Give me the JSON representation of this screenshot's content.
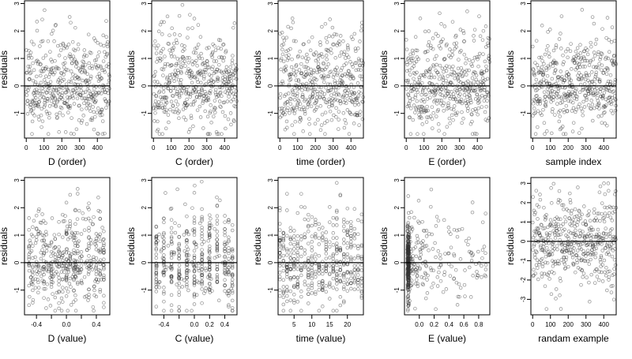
{
  "chart_data": [
    {
      "type": "scatter",
      "title": "",
      "xlabel": "D (order)",
      "ylabel": "residuals",
      "xlim": [
        -10,
        470
      ],
      "ylim": [
        -1.9,
        3.1
      ],
      "xticks": [
        0,
        100,
        200,
        300,
        400
      ],
      "xtick_labels": [
        "0",
        "100",
        "200",
        "300",
        "400"
      ],
      "yticks": [
        -1,
        0,
        1,
        2,
        3
      ],
      "ytick_labels": [
        "-1",
        "0",
        "1",
        "2",
        "3"
      ],
      "reference_line_y": 0,
      "pattern": "order",
      "n": 470,
      "seed": 11,
      "points_note": "",
      "x": [],
      "y": []
    },
    {
      "type": "scatter",
      "title": "",
      "xlabel": "C (order)",
      "ylabel": "residuals",
      "xlim": [
        -10,
        470
      ],
      "ylim": [
        -1.9,
        3.1
      ],
      "xticks": [
        0,
        100,
        200,
        300,
        400
      ],
      "xtick_labels": [
        "0",
        "100",
        "200",
        "300",
        "400"
      ],
      "yticks": [
        -1,
        0,
        1,
        2,
        3
      ],
      "ytick_labels": [
        "-1",
        "0",
        "1",
        "2",
        "3"
      ],
      "reference_line_y": 0,
      "pattern": "order",
      "n": 470,
      "seed": 23,
      "points_note": "",
      "x": [],
      "y": []
    },
    {
      "type": "scatter",
      "title": "",
      "xlabel": "time (order)",
      "ylabel": "residuals",
      "xlim": [
        -10,
        470
      ],
      "ylim": [
        -1.9,
        3.1
      ],
      "xticks": [
        0,
        100,
        200,
        300,
        400
      ],
      "xtick_labels": [
        "0",
        "100",
        "200",
        "300",
        "400"
      ],
      "yticks": [
        -1,
        0,
        1,
        2,
        3
      ],
      "ytick_labels": [
        "-1",
        "0",
        "1",
        "2",
        "3"
      ],
      "reference_line_y": 0,
      "pattern": "order",
      "n": 470,
      "seed": 37,
      "points_note": "",
      "x": [],
      "y": []
    },
    {
      "type": "scatter",
      "title": "",
      "xlabel": "E (order)",
      "ylabel": "residuals",
      "xlim": [
        -10,
        470
      ],
      "ylim": [
        -1.9,
        3.1
      ],
      "xticks": [
        0,
        100,
        200,
        300,
        400
      ],
      "xtick_labels": [
        "0",
        "100",
        "200",
        "300",
        "400"
      ],
      "yticks": [
        -1,
        0,
        1,
        2,
        3
      ],
      "ytick_labels": [
        "-1",
        "0",
        "1",
        "2",
        "3"
      ],
      "reference_line_y": 0,
      "pattern": "order",
      "n": 470,
      "seed": 41,
      "points_note": "",
      "x": [],
      "y": []
    },
    {
      "type": "scatter",
      "title": "",
      "xlabel": "sample index",
      "ylabel": "residuals",
      "xlim": [
        -10,
        470
      ],
      "ylim": [
        -1.9,
        3.1
      ],
      "xticks": [
        0,
        100,
        200,
        300,
        400
      ],
      "xtick_labels": [
        "0",
        "100",
        "200",
        "300",
        "400"
      ],
      "yticks": [
        -1,
        0,
        1,
        2,
        3
      ],
      "ytick_labels": [
        "-1",
        "0",
        "1",
        "2",
        "3"
      ],
      "reference_line_y": 0,
      "pattern": "order",
      "n": 470,
      "seed": 53,
      "points_note": "",
      "x": [],
      "y": []
    },
    {
      "type": "scatter",
      "title": "",
      "xlabel": "D (value)",
      "ylabel": "residuals",
      "xlim": [
        -0.56,
        0.58
      ],
      "ylim": [
        -1.9,
        3.1
      ],
      "xticks": [
        -0.4,
        -0.2,
        0.0,
        0.2,
        0.4
      ],
      "xtick_labels": [
        "-0.4",
        "",
        "0.0",
        "",
        "0.4"
      ],
      "yticks": [
        -1,
        0,
        1,
        2,
        3
      ],
      "ytick_labels": [
        "-1",
        "0",
        "1",
        "2",
        "3"
      ],
      "reference_line_y": 0,
      "pattern": "value_D",
      "n": 470,
      "seed": 61,
      "points_note": "",
      "x": [],
      "y": []
    },
    {
      "type": "scatter",
      "title": "",
      "xlabel": "C (value)",
      "ylabel": "residuals",
      "xlim": [
        -0.56,
        0.56
      ],
      "ylim": [
        -1.9,
        3.1
      ],
      "xticks": [
        -0.4,
        -0.2,
        0.0,
        0.2,
        0.4
      ],
      "xtick_labels": [
        "-0.4",
        "",
        "0.0",
        "0.2",
        "0.4"
      ],
      "yticks": [
        -1,
        0,
        1,
        2,
        3
      ],
      "ytick_labels": [
        "-1",
        "0",
        "1",
        "2",
        "3"
      ],
      "reference_line_y": 0,
      "pattern": "value_C",
      "n": 470,
      "seed": 73,
      "points_note": "",
      "x": [],
      "y": []
    },
    {
      "type": "scatter",
      "title": "",
      "xlabel": "time (value)",
      "ylabel": "residuals",
      "xlim": [
        0.5,
        24.5
      ],
      "ylim": [
        -1.9,
        3.1
      ],
      "xticks": [
        5,
        10,
        15,
        20
      ],
      "xtick_labels": [
        "5",
        "10",
        "15",
        "20"
      ],
      "yticks": [
        -1,
        0,
        1,
        2,
        3
      ],
      "ytick_labels": [
        "-1",
        "0",
        "1",
        "2",
        "3"
      ],
      "reference_line_y": 0,
      "pattern": "value_time",
      "n": 470,
      "seed": 83,
      "points_note": "",
      "x": [],
      "y": []
    },
    {
      "type": "scatter",
      "title": "",
      "xlabel": "E (value)",
      "ylabel": "residuals",
      "xlim": [
        -0.2,
        0.95
      ],
      "ylim": [
        -1.9,
        3.1
      ],
      "xticks": [
        0.0,
        0.2,
        0.4,
        0.6,
        0.8
      ],
      "xtick_labels": [
        "0.0",
        "0.2",
        "0.4",
        "0.6",
        "0.8"
      ],
      "yticks": [
        -1,
        0,
        1,
        2,
        3
      ],
      "ytick_labels": [
        "-1",
        "0",
        "1",
        "2",
        "3"
      ],
      "reference_line_y": 0,
      "pattern": "value_E",
      "n": 470,
      "seed": 97,
      "points_note": "",
      "x": [],
      "y": []
    },
    {
      "type": "scatter",
      "title": "",
      "xlabel": "randam example",
      "ylabel": "residuals",
      "xlim": [
        -10,
        470
      ],
      "ylim": [
        -3.8,
        3.3
      ],
      "xticks": [
        0,
        100,
        200,
        300,
        400
      ],
      "xtick_labels": [
        "0",
        "100",
        "200",
        "300",
        "400"
      ],
      "yticks": [
        -3,
        -2,
        -1,
        0,
        1,
        2,
        3
      ],
      "ytick_labels": [
        "-3",
        "-2",
        "-1",
        "0",
        "1",
        "2",
        "3"
      ],
      "reference_line_y": 0,
      "pattern": "random",
      "n": 470,
      "seed": 109,
      "points_note": "",
      "x": [],
      "y": []
    }
  ]
}
